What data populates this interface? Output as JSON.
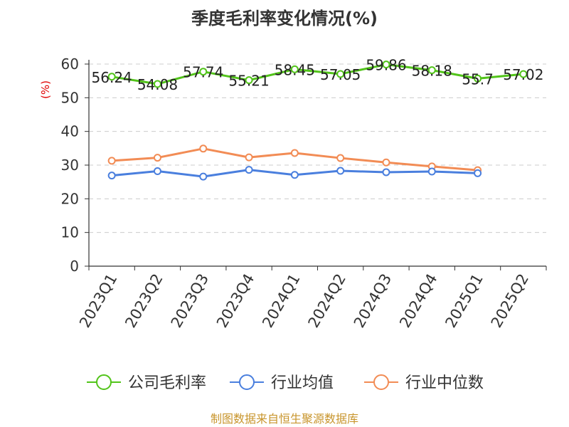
{
  "chart_data": {
    "type": "line",
    "title": "季度毛利率变化情况(%)",
    "ylabel": "(%)",
    "xlabel": "",
    "categories": [
      "2023Q1",
      "2023Q2",
      "2023Q3",
      "2023Q4",
      "2024Q1",
      "2024Q2",
      "2024Q3",
      "2024Q4",
      "2025Q1",
      "2025Q2"
    ],
    "ylim": [
      0,
      60
    ],
    "yticks": [
      0,
      10,
      20,
      30,
      40,
      50,
      60
    ],
    "grid": true,
    "legend_position": "bottom",
    "series": [
      {
        "name": "公司毛利率",
        "color": "#52c41a",
        "values": [
          56.24,
          54.08,
          57.74,
          55.21,
          58.45,
          57.05,
          59.86,
          58.18,
          55.7,
          57.02
        ],
        "labels": [
          "56.24",
          "54.08",
          "57.74",
          "55.21",
          "58.45",
          "57.05",
          "59.86",
          "58.18",
          "55.7",
          "57.02"
        ]
      },
      {
        "name": "行业均值",
        "color": "#4a7fde",
        "values": [
          26.9,
          28.2,
          26.6,
          28.6,
          27.1,
          28.3,
          27.9,
          28.1,
          27.6,
          null
        ]
      },
      {
        "name": "行业中位数",
        "color": "#f28c55",
        "values": [
          31.3,
          32.2,
          34.9,
          32.3,
          33.6,
          32.1,
          30.8,
          29.6,
          28.5,
          null
        ]
      }
    ],
    "source": "制图数据来自恒生聚源数据库"
  }
}
